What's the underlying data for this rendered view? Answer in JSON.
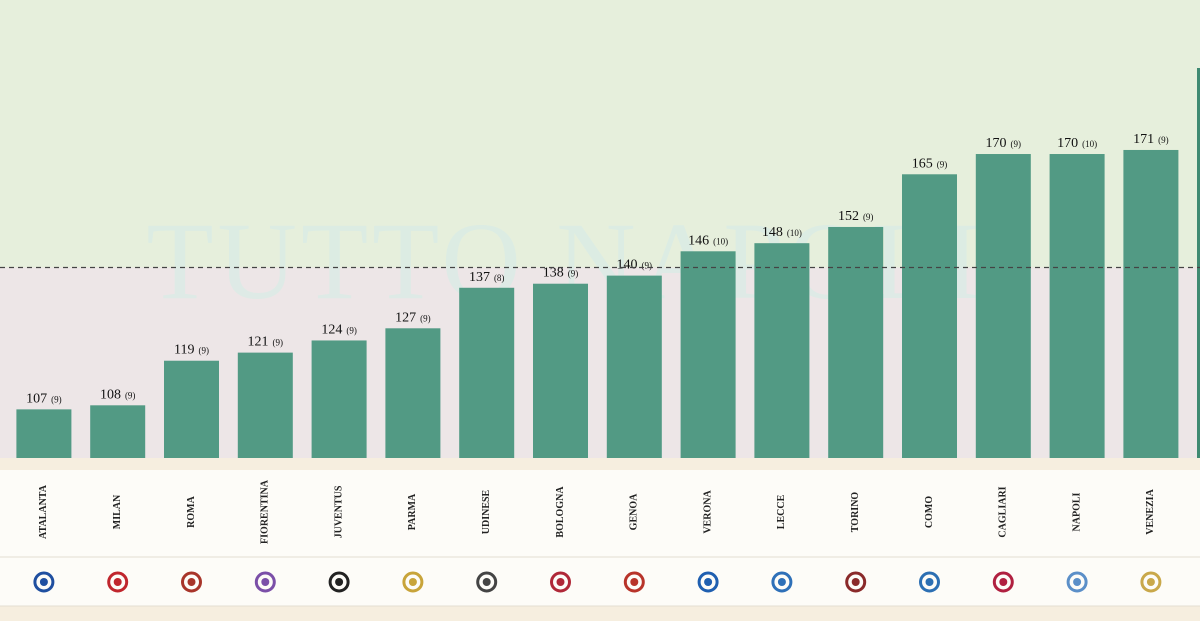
{
  "chart_data": {
    "type": "bar",
    "watermark": "TUTTO NAPOLI",
    "categories": [
      "ATALANTA",
      "MILAN",
      "ROMA",
      "FIORENTINA",
      "JUVENTUS",
      "PARMA",
      "UDINESE",
      "BOLOGNA",
      "GENOA",
      "VERONA",
      "LECCE",
      "TORINO",
      "COMO",
      "CAGLIARI",
      "NAPOLI",
      "VENEZIA"
    ],
    "values": [
      107,
      108,
      119,
      121,
      124,
      127,
      137,
      138,
      140,
      146,
      148,
      152,
      165,
      170,
      170,
      171
    ],
    "games": [
      "(9)",
      "(9)",
      "(9)",
      "(9)",
      "(9)",
      "(9)",
      "(8)",
      "(9)",
      "(9)",
      "(10)",
      "(10)",
      "(9)",
      "(9)",
      "(9)",
      "(10)",
      "(9)"
    ],
    "color": "#529a84",
    "ylim": [
      95,
      208
    ],
    "reference": 142
  }
}
